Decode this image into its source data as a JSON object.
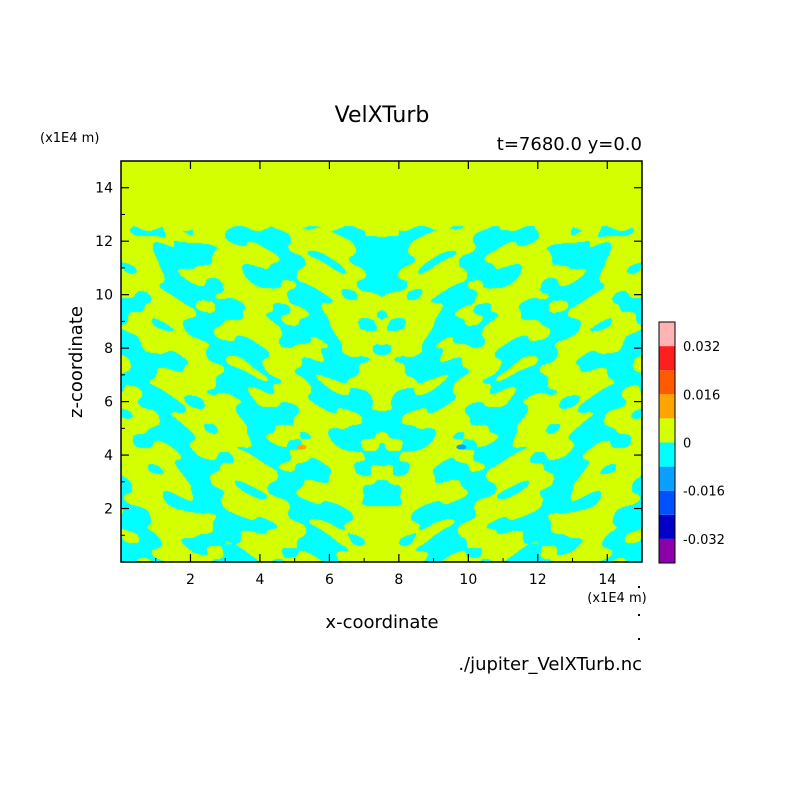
{
  "chart_data": {
    "type": "heatmap",
    "title": "VelXTurb",
    "subtitle": "t=7680.0 y=0.0",
    "xlabel": "x-coordinate",
    "ylabel": "z-coordinate",
    "x_unit": "(x1E4 m)",
    "y_unit": "(x1E4 m)",
    "source": "./jupiter_VelXTurb.nc",
    "xlim": [
      0,
      15
    ],
    "ylim": [
      0,
      15
    ],
    "x_ticks": [
      2,
      4,
      6,
      8,
      10,
      12,
      14
    ],
    "y_ticks": [
      2,
      4,
      6,
      8,
      10,
      12,
      14
    ],
    "colorbar": {
      "levels": [
        -0.04,
        -0.032,
        -0.024,
        -0.016,
        -0.008,
        0,
        0.008,
        0.016,
        0.024,
        0.032,
        0.04
      ],
      "colors": [
        "#8b00a8",
        "#0000c8",
        "#0050ff",
        "#0aa0ff",
        "#00ffff",
        "#d4ff00",
        "#ffa500",
        "#ff5a00",
        "#ff1e1e",
        "#ffb4b4"
      ],
      "tick_labels": [
        "0.032",
        "0.016",
        "0",
        "-0.016",
        "-0.032"
      ],
      "tick_values": [
        0.032,
        0.016,
        0,
        -0.016,
        -0.032
      ]
    },
    "field_description_regions": {
      "upper_zero_band_z_range": [
        12.5,
        15
      ],
      "turbulent_z_range": [
        0,
        12.5
      ],
      "dominant_values": [
        0,
        -0.008
      ],
      "rare_extremes": [
        {
          "x": 5.2,
          "z": 4.3,
          "value": 0.016
        },
        {
          "x": 9.8,
          "z": 4.3,
          "value": -0.016
        }
      ]
    }
  }
}
